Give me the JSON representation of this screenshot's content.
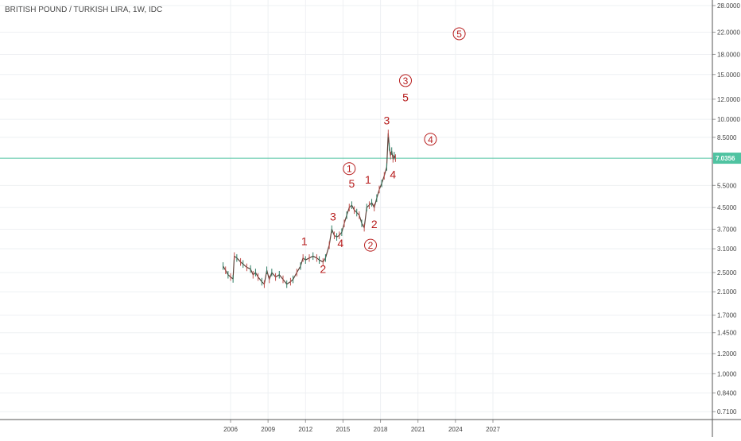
{
  "chart_data": {
    "type": "line",
    "title": "BRITISH POUND / TURKISH LIRA, 1W, IDC",
    "xlabel": "",
    "ylabel": "",
    "y_scale": "log",
    "grid": true,
    "x_ticks": [
      "2006",
      "2009",
      "2012",
      "2015",
      "2018",
      "2021",
      "2024",
      "2027"
    ],
    "x_tick_values": [
      2006,
      2009,
      2012,
      2015,
      2018,
      2021,
      2024,
      2027
    ],
    "y_ticks": [
      "28.0000",
      "22.0000",
      "18.0000",
      "15.0000",
      "12.0000",
      "10.0000",
      "8.5000",
      "5.5000",
      "4.5000",
      "3.7000",
      "3.1000",
      "2.5000",
      "2.1000",
      "1.7000",
      "1.4500",
      "1.2000",
      "1.0000",
      "0.8400",
      "0.7100"
    ],
    "y_tick_values": [
      28,
      22,
      18,
      15,
      12,
      10,
      8.5,
      5.5,
      4.5,
      3.7,
      3.1,
      2.5,
      2.1,
      1.7,
      1.45,
      1.2,
      1.0,
      0.84,
      0.71
    ],
    "xlim": [
      2006.2,
      2030.0
    ],
    "ylim": [
      0.67,
      30.0
    ],
    "last_price": {
      "value": 7.0356,
      "label": "7.0356",
      "color": "#4fc3a1"
    },
    "series": [
      {
        "color": "#5d4037",
        "points": [
          [
            2005.4,
            2.65
          ],
          [
            2005.6,
            2.55
          ],
          [
            2005.8,
            2.45
          ],
          [
            2006.0,
            2.4
          ],
          [
            2006.2,
            2.36
          ],
          [
            2006.3,
            2.9
          ],
          [
            2006.5,
            2.85
          ],
          [
            2006.8,
            2.75
          ],
          [
            2007.0,
            2.7
          ],
          [
            2007.3,
            2.62
          ],
          [
            2007.6,
            2.58
          ],
          [
            2007.8,
            2.45
          ],
          [
            2008.0,
            2.5
          ],
          [
            2008.2,
            2.4
          ],
          [
            2008.5,
            2.3
          ],
          [
            2008.7,
            2.25
          ],
          [
            2008.9,
            2.55
          ],
          [
            2009.1,
            2.35
          ],
          [
            2009.3,
            2.5
          ],
          [
            2009.6,
            2.4
          ],
          [
            2009.9,
            2.45
          ],
          [
            2010.2,
            2.35
          ],
          [
            2010.5,
            2.25
          ],
          [
            2010.8,
            2.3
          ],
          [
            2011.0,
            2.35
          ],
          [
            2011.3,
            2.5
          ],
          [
            2011.6,
            2.65
          ],
          [
            2011.8,
            2.85
          ],
          [
            2012.0,
            2.8
          ],
          [
            2012.3,
            2.85
          ],
          [
            2012.6,
            2.9
          ],
          [
            2012.9,
            2.85
          ],
          [
            2013.1,
            2.8
          ],
          [
            2013.4,
            2.75
          ],
          [
            2013.6,
            2.85
          ],
          [
            2013.9,
            3.2
          ],
          [
            2014.1,
            3.7
          ],
          [
            2014.3,
            3.5
          ],
          [
            2014.5,
            3.45
          ],
          [
            2014.7,
            3.5
          ],
          [
            2014.9,
            3.6
          ],
          [
            2015.1,
            3.9
          ],
          [
            2015.3,
            4.2
          ],
          [
            2015.5,
            4.5
          ],
          [
            2015.7,
            4.6
          ],
          [
            2015.9,
            4.4
          ],
          [
            2016.1,
            4.3
          ],
          [
            2016.3,
            4.2
          ],
          [
            2016.5,
            3.9
          ],
          [
            2016.7,
            3.75
          ],
          [
            2016.9,
            4.5
          ],
          [
            2017.1,
            4.6
          ],
          [
            2017.3,
            4.7
          ],
          [
            2017.5,
            4.5
          ],
          [
            2017.7,
            4.9
          ],
          [
            2017.9,
            5.3
          ],
          [
            2018.1,
            5.6
          ],
          [
            2018.3,
            6.0
          ],
          [
            2018.5,
            6.5
          ],
          [
            2018.62,
            8.8
          ],
          [
            2018.7,
            7.8
          ],
          [
            2018.8,
            7.2
          ],
          [
            2018.9,
            7.5
          ],
          [
            2019.0,
            7.0
          ],
          [
            2019.1,
            7.2
          ],
          [
            2019.2,
            7.04
          ]
        ]
      }
    ],
    "annotations": [
      {
        "text": "1",
        "x": 2011.9,
        "y": 3.32,
        "circled": false
      },
      {
        "text": "2",
        "x": 2013.4,
        "y": 2.58,
        "circled": false
      },
      {
        "text": "3",
        "x": 2014.2,
        "y": 4.15,
        "circled": false
      },
      {
        "text": "4",
        "x": 2014.8,
        "y": 3.26,
        "circled": false
      },
      {
        "text": "5",
        "x": 2015.7,
        "y": 5.6,
        "circled": false
      },
      {
        "text": "1",
        "x": 2017.0,
        "y": 5.8,
        "circled": false
      },
      {
        "text": "2",
        "x": 2017.5,
        "y": 3.87,
        "circled": false
      },
      {
        "text": "3",
        "x": 2018.5,
        "y": 9.9,
        "circled": false
      },
      {
        "text": "4",
        "x": 2019.0,
        "y": 6.08,
        "circled": false
      },
      {
        "text": "5",
        "x": 2020.0,
        "y": 12.2,
        "circled": false
      },
      {
        "text": "1",
        "x": 2015.5,
        "y": 6.4,
        "circled": true
      },
      {
        "text": "2",
        "x": 2017.2,
        "y": 3.2,
        "circled": true
      },
      {
        "text": "3",
        "x": 2020.0,
        "y": 14.2,
        "circled": true
      },
      {
        "text": "4",
        "x": 2022.0,
        "y": 8.35,
        "circled": true
      },
      {
        "text": "5",
        "x": 2024.3,
        "y": 21.7,
        "circled": true
      }
    ]
  }
}
